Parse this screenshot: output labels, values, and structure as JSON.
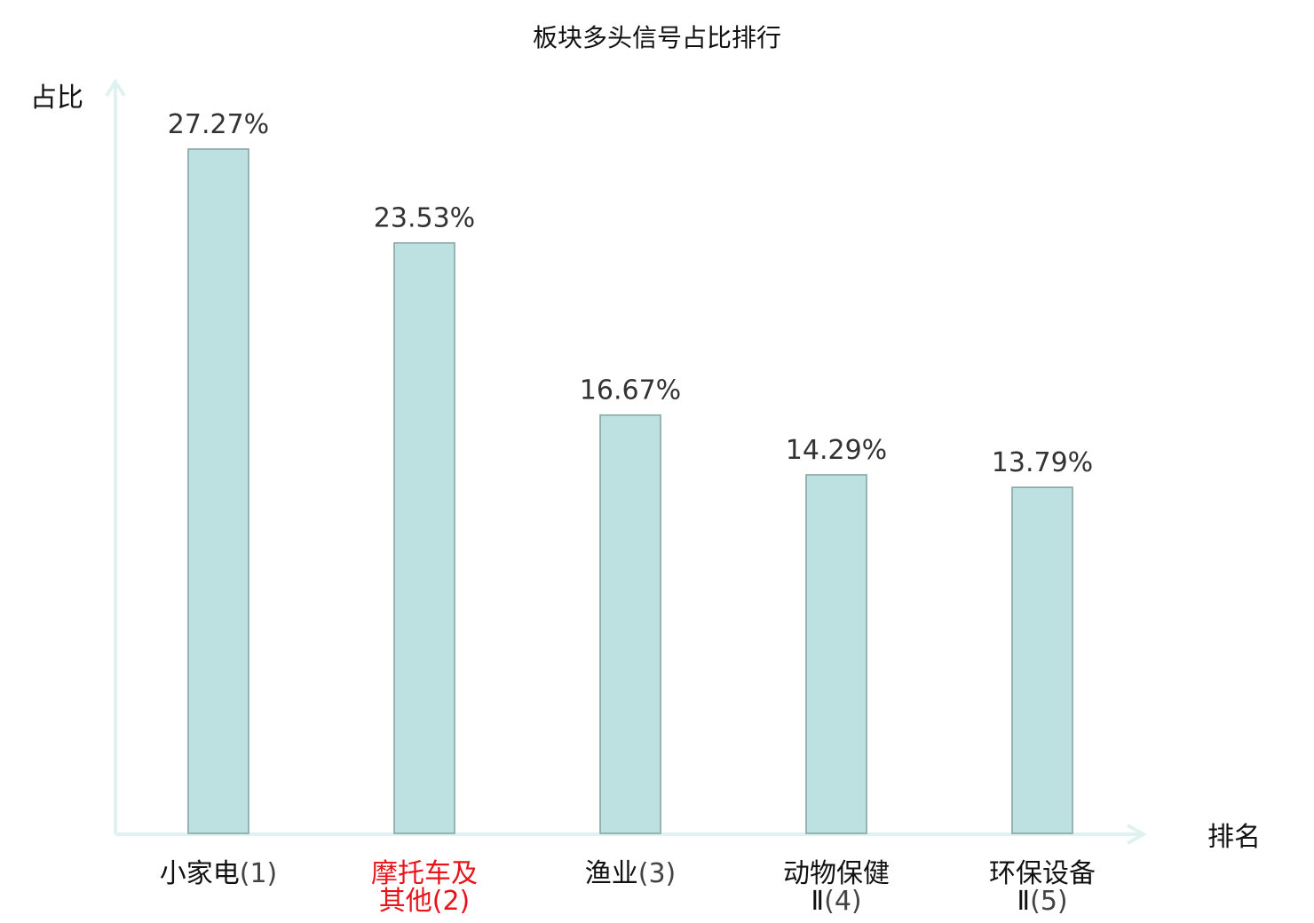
{
  "chart_data": {
    "type": "bar",
    "title": "板块多头信号占比排行",
    "ylabel": "占比",
    "xlabel": "排名",
    "categories": [
      {
        "name_lines": [
          "小家电"
        ],
        "rank": "(1)",
        "highlight": false
      },
      {
        "name_lines": [
          "摩托车及",
          "其他"
        ],
        "rank": "(2)",
        "highlight": true
      },
      {
        "name_lines": [
          "渔业"
        ],
        "rank": "(3)",
        "highlight": false
      },
      {
        "name_lines": [
          "动物保健",
          "Ⅱ"
        ],
        "rank": "(4)",
        "highlight": false
      },
      {
        "name_lines": [
          "环保设备",
          "Ⅱ"
        ],
        "rank": "(5)",
        "highlight": false
      }
    ],
    "values": [
      27.27,
      23.53,
      16.67,
      14.29,
      13.79
    ],
    "value_labels": [
      "27.27%",
      "23.53%",
      "16.67%",
      "14.29%",
      "13.79%"
    ],
    "ylim": [
      0,
      27.27
    ],
    "grid": false,
    "colors": {
      "bar_fill": "#bde0e1",
      "bar_stroke": "#86a5a6",
      "axis": "#e0f2ef",
      "highlight": "#e8141a",
      "text": "#111111"
    }
  }
}
